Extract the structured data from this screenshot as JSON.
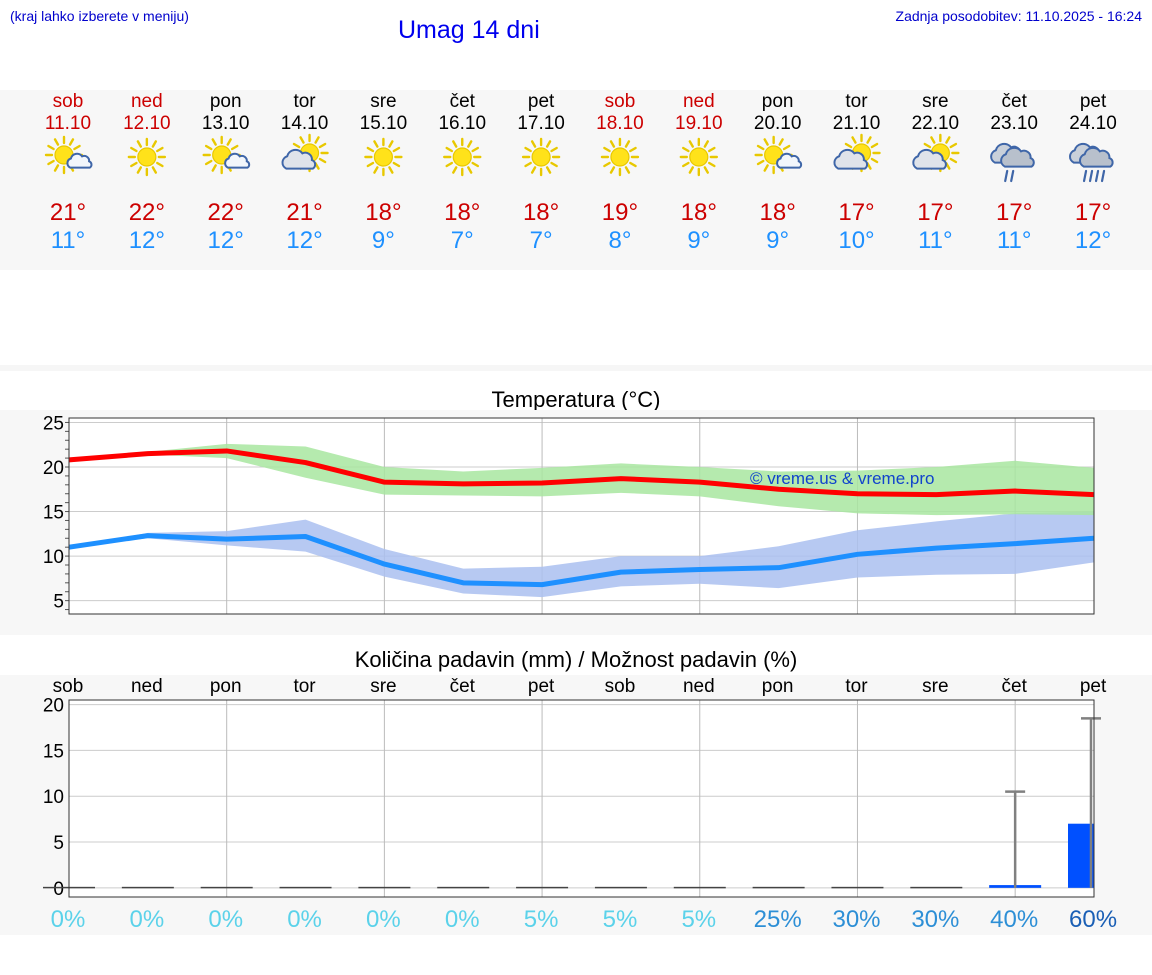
{
  "header": {
    "hint": "(kraj lahko izberete v meniju)",
    "title": "Umag 14 dni",
    "updated": "Zadnja posodobitev: 11.10.2025 - 16:24"
  },
  "colors": {
    "weekend": "#cc0000",
    "weekday": "#000000",
    "max_temp": "#cc0000",
    "min_temp": "#1e90ff",
    "max_line": "#ff0000",
    "min_line": "#1e90ff",
    "max_band": "#a8e6a0",
    "min_band": "#aabff0",
    "bar": "#0050ff",
    "error_bar": "#808080"
  },
  "days": [
    {
      "name": "sob",
      "date": "11.10",
      "weekend": true,
      "icon": "sun-cloud-icon",
      "max": "21°",
      "min": "11°"
    },
    {
      "name": "ned",
      "date": "12.10",
      "weekend": true,
      "icon": "sun-icon",
      "max": "22°",
      "min": "12°"
    },
    {
      "name": "pon",
      "date": "13.10",
      "weekend": false,
      "icon": "sun-cloud-icon",
      "max": "22°",
      "min": "12°"
    },
    {
      "name": "tor",
      "date": "14.10",
      "weekend": false,
      "icon": "cloud-sun-icon",
      "max": "21°",
      "min": "12°"
    },
    {
      "name": "sre",
      "date": "15.10",
      "weekend": false,
      "icon": "sun-icon",
      "max": "18°",
      "min": "9°"
    },
    {
      "name": "čet",
      "date": "16.10",
      "weekend": false,
      "icon": "sun-icon",
      "max": "18°",
      "min": "7°"
    },
    {
      "name": "pet",
      "date": "17.10",
      "weekend": false,
      "icon": "sun-icon",
      "max": "18°",
      "min": "7°"
    },
    {
      "name": "sob",
      "date": "18.10",
      "weekend": true,
      "icon": "sun-icon",
      "max": "19°",
      "min": "8°"
    },
    {
      "name": "ned",
      "date": "19.10",
      "weekend": true,
      "icon": "sun-icon",
      "max": "18°",
      "min": "9°"
    },
    {
      "name": "pon",
      "date": "20.10",
      "weekend": false,
      "icon": "sun-cloud-icon",
      "max": "18°",
      "min": "9°"
    },
    {
      "name": "tor",
      "date": "21.10",
      "weekend": false,
      "icon": "cloud-sun-icon",
      "max": "17°",
      "min": "10°"
    },
    {
      "name": "sre",
      "date": "22.10",
      "weekend": false,
      "icon": "cloud-sun-icon",
      "max": "17°",
      "min": "11°"
    },
    {
      "name": "čet",
      "date": "23.10",
      "weekend": false,
      "icon": "rain-light-icon",
      "max": "17°",
      "min": "11°"
    },
    {
      "name": "pet",
      "date": "24.10",
      "weekend": false,
      "icon": "rain-icon",
      "max": "17°",
      "min": "12°"
    }
  ],
  "chart_data": [
    {
      "type": "line",
      "title": "Temperatura (°C)",
      "watermark": "© vreme.us & vreme.pro",
      "ylim": [
        3.5,
        25.5
      ],
      "yticks": [
        5,
        10,
        15,
        20,
        25
      ],
      "grid": true,
      "x": [
        "11.10",
        "12.10",
        "13.10",
        "14.10",
        "15.10",
        "16.10",
        "17.10",
        "18.10",
        "19.10",
        "20.10",
        "21.10",
        "22.10",
        "23.10",
        "24.10"
      ],
      "series": [
        {
          "role": "max",
          "values": [
            20.8,
            21.5,
            21.8,
            20.5,
            18.3,
            18.1,
            18.2,
            18.7,
            18.3,
            17.5,
            17.0,
            16.9,
            17.3,
            16.9
          ],
          "band_low": [
            20.8,
            21.4,
            21.0,
            18.8,
            16.9,
            16.8,
            16.7,
            17.1,
            16.7,
            15.6,
            14.8,
            14.6,
            14.7,
            14.6
          ],
          "band_high": [
            20.8,
            21.7,
            22.6,
            22.3,
            20.0,
            19.5,
            19.9,
            20.4,
            20.0,
            19.5,
            19.6,
            20.0,
            20.7,
            19.9
          ]
        },
        {
          "role": "min",
          "values": [
            11.0,
            12.3,
            11.9,
            12.2,
            9.1,
            7.0,
            6.8,
            8.2,
            8.5,
            8.7,
            10.2,
            10.9,
            11.4,
            12.0
          ],
          "band_low": [
            11.0,
            12.0,
            11.2,
            10.5,
            7.7,
            5.8,
            5.4,
            6.6,
            6.9,
            6.4,
            7.6,
            7.9,
            8.0,
            9.3
          ],
          "band_high": [
            11.0,
            12.6,
            12.8,
            14.1,
            10.8,
            8.6,
            8.8,
            10.0,
            10.0,
            11.1,
            12.9,
            13.9,
            14.8,
            15.0
          ]
        }
      ]
    },
    {
      "type": "bar",
      "title": "Količina padavin (mm) / Možnost padavin (%)",
      "day_labels": [
        "sob",
        "ned",
        "pon",
        "tor",
        "sre",
        "čet",
        "pet",
        "sob",
        "ned",
        "pon",
        "tor",
        "sre",
        "čet",
        "pet"
      ],
      "ylim": [
        -1,
        20.5
      ],
      "yticks": [
        0,
        5,
        10,
        15,
        20
      ],
      "grid": true,
      "values": [
        0,
        0,
        0,
        0,
        0,
        0,
        0,
        0,
        0,
        0,
        0,
        0,
        0.3,
        7.0
      ],
      "error_high": [
        null,
        null,
        null,
        null,
        null,
        null,
        null,
        null,
        null,
        null,
        null,
        null,
        10.5,
        18.5
      ],
      "probability": [
        "0%",
        "0%",
        "0%",
        "0%",
        "0%",
        "0%",
        "5%",
        "5%",
        "5%",
        "25%",
        "30%",
        "30%",
        "40%",
        "60%"
      ],
      "probability_colors": [
        "#5bd2ea",
        "#5bd2ea",
        "#5bd2ea",
        "#5bd2ea",
        "#5bd2ea",
        "#5bd2ea",
        "#5bd2ea",
        "#5bd2ea",
        "#5bd2ea",
        "#2d8fd6",
        "#2d8fd6",
        "#2d8fd6",
        "#2d8fd6",
        "#1a5fb5"
      ]
    }
  ]
}
